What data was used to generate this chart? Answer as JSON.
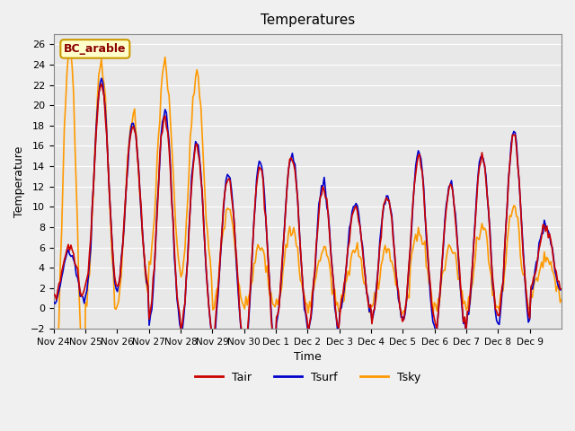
{
  "title": "Temperatures",
  "xlabel": "Time",
  "ylabel": "Temperature",
  "site_label": "BC_arable",
  "ylim": [
    -2,
    27
  ],
  "yticks": [
    -2,
    0,
    2,
    4,
    6,
    8,
    10,
    12,
    14,
    16,
    18,
    20,
    22,
    24,
    26
  ],
  "xtick_labels": [
    "Nov 24",
    "Nov 25",
    "Nov 26",
    "Nov 27",
    "Nov 28",
    "Nov 29",
    "Nov 30",
    "Dec 1",
    "Dec 2",
    "Dec 3",
    "Dec 4",
    "Dec 5",
    "Dec 6",
    "Dec 7",
    "Dec 8",
    "Dec 9"
  ],
  "colors": {
    "Tair": "#cc0000",
    "Tsurf": "#0000cc",
    "Tsky": "#ff9900"
  },
  "background_color": "#e8e8e8",
  "grid_color": "#ffffff",
  "line_width": 1.2
}
